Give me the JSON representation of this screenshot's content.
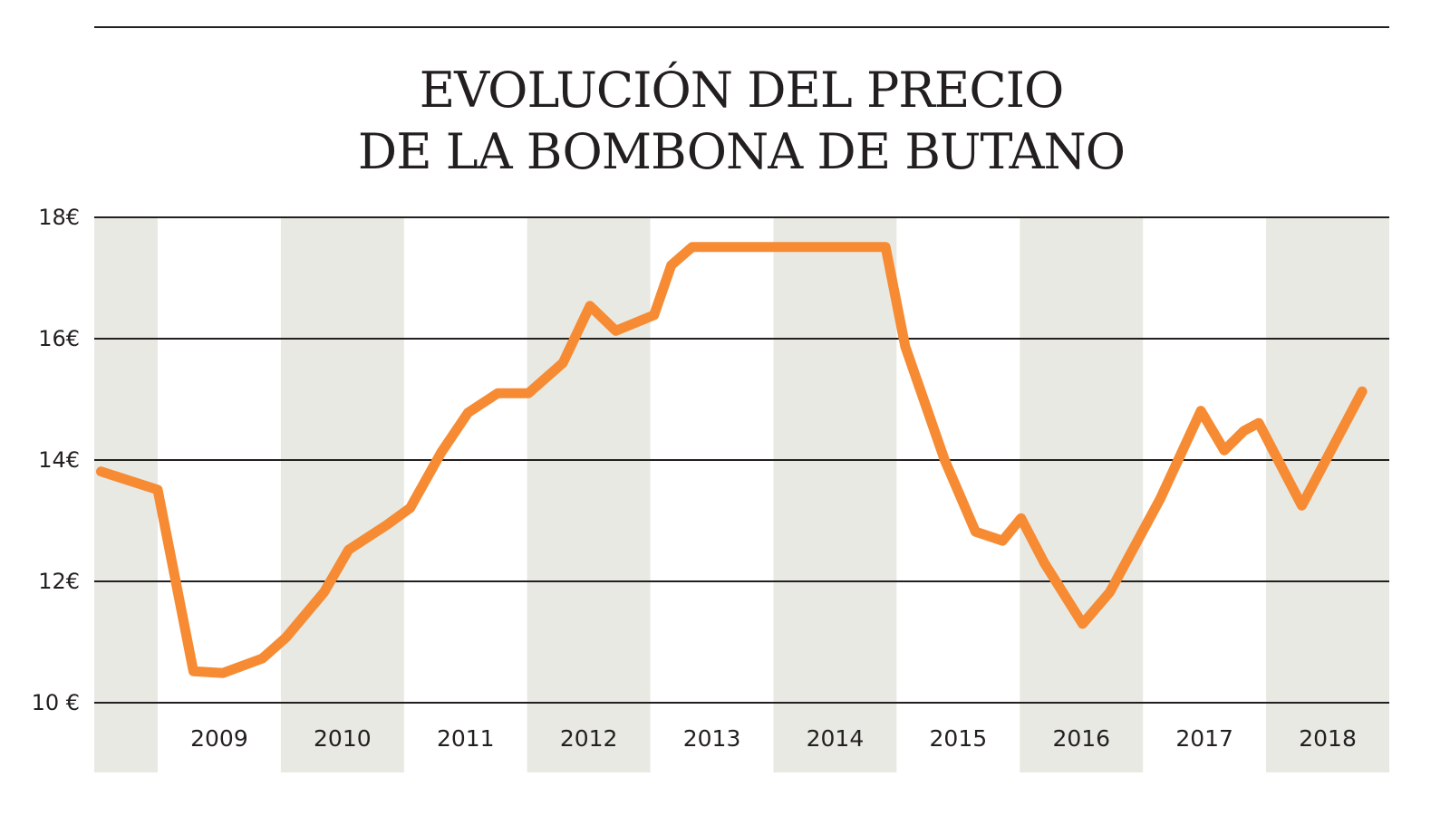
{
  "chart_data": {
    "type": "line",
    "title_lines": [
      "EVOLUCIÓN DEL PRECIO",
      "DE LA BOMBONA DE BUTANO"
    ],
    "xlabel": "",
    "ylabel": "",
    "xlim": [
      2008.48,
      2019.0
    ],
    "ylim": [
      10,
      18
    ],
    "y_ticks": [
      {
        "value": 18,
        "label": "18€"
      },
      {
        "value": 16,
        "label": "16€"
      },
      {
        "value": 14,
        "label": "14€"
      },
      {
        "value": 12,
        "label": "12€"
      },
      {
        "value": 10,
        "label": "10 €"
      }
    ],
    "x_ticks": [
      "2009",
      "2010",
      "2011",
      "2012",
      "2013",
      "2014",
      "2015",
      "2016",
      "2017",
      "2018"
    ],
    "grid": true,
    "alternating_year_bands": true,
    "colors": {
      "line": "#f68b33",
      "band": "#e9e9e4",
      "grid": "#231f20",
      "text": "#231f20"
    },
    "series": [
      {
        "x": [
          2008.54,
          2009.0,
          2009.29,
          2009.53,
          2009.85,
          2010.04,
          2010.35,
          2010.55,
          2010.86,
          2011.05,
          2011.3,
          2011.52,
          2011.76,
          2012.01,
          2012.29,
          2012.51,
          2012.72,
          2013.03,
          2013.17,
          2013.34,
          2014.91,
          2015.07,
          2015.39,
          2015.64,
          2015.86,
          2016.01,
          2016.2,
          2016.51,
          2016.73,
          2017.14,
          2017.47,
          2017.66,
          2017.82,
          2017.94,
          2018.29,
          2018.78
        ],
        "y": [
          13.81,
          13.51,
          10.52,
          10.49,
          10.73,
          11.07,
          11.82,
          12.52,
          12.93,
          13.21,
          14.12,
          14.78,
          15.1,
          15.1,
          15.6,
          16.54,
          16.13,
          16.39,
          17.21,
          17.51,
          17.51,
          15.87,
          14.0,
          12.82,
          12.67,
          13.04,
          12.3,
          11.3,
          11.82,
          13.36,
          14.81,
          14.16,
          14.48,
          14.61,
          13.25,
          15.13
        ]
      }
    ]
  }
}
